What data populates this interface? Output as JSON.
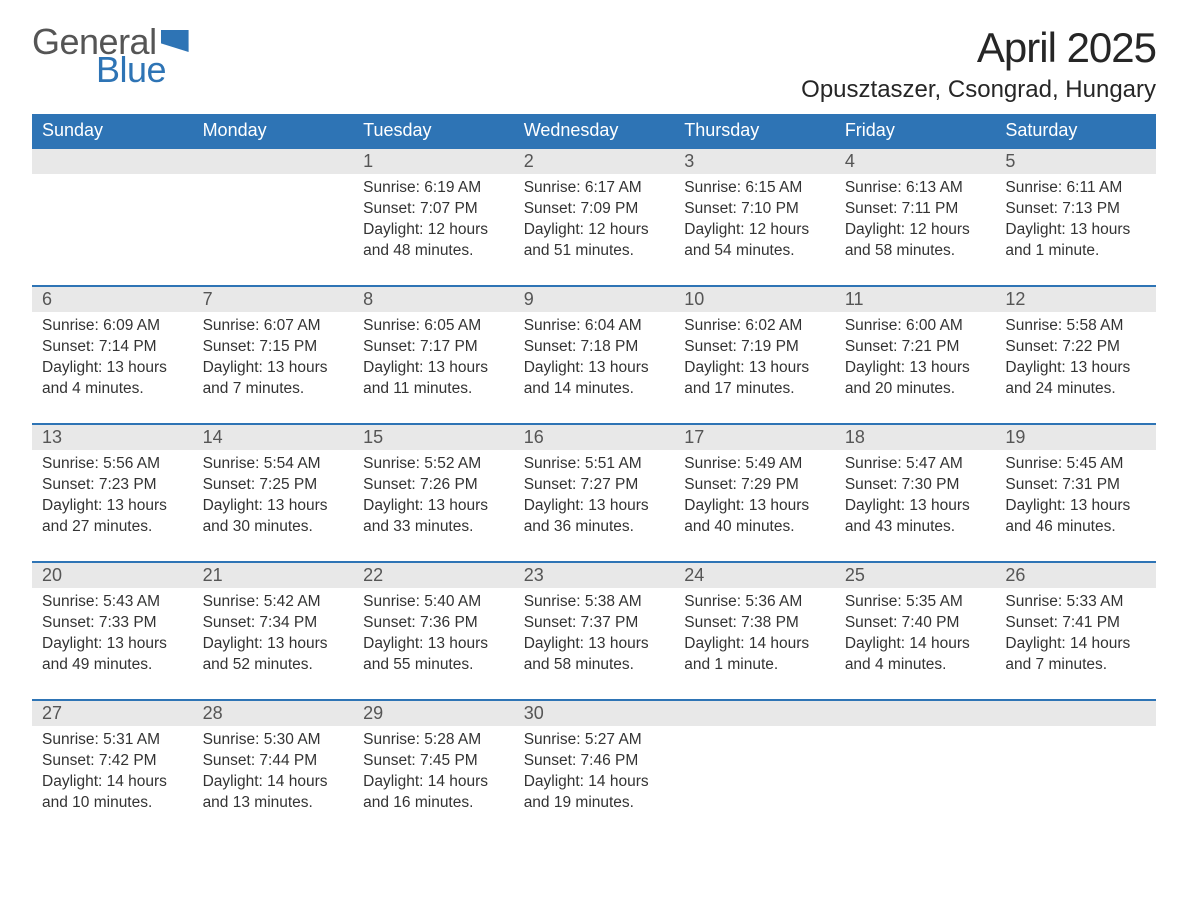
{
  "logo": {
    "word1": "General",
    "word2": "Blue"
  },
  "title": "April 2025",
  "location": "Opusztaszer, Csongrad, Hungary",
  "colors": {
    "header_bg": "#2e74b5",
    "header_text": "#ffffff",
    "daynum_bg": "#e8e8e8",
    "row_border": "#2e74b5",
    "body_text": "#333333",
    "page_bg": "#ffffff"
  },
  "day_headers": [
    "Sunday",
    "Monday",
    "Tuesday",
    "Wednesday",
    "Thursday",
    "Friday",
    "Saturday"
  ],
  "weeks": [
    [
      {
        "n": "",
        "empty": true
      },
      {
        "n": "",
        "empty": true
      },
      {
        "n": "1",
        "sr": "Sunrise: 6:19 AM",
        "ss": "Sunset: 7:07 PM",
        "d1": "Daylight: 12 hours",
        "d2": "and 48 minutes."
      },
      {
        "n": "2",
        "sr": "Sunrise: 6:17 AM",
        "ss": "Sunset: 7:09 PM",
        "d1": "Daylight: 12 hours",
        "d2": "and 51 minutes."
      },
      {
        "n": "3",
        "sr": "Sunrise: 6:15 AM",
        "ss": "Sunset: 7:10 PM",
        "d1": "Daylight: 12 hours",
        "d2": "and 54 minutes."
      },
      {
        "n": "4",
        "sr": "Sunrise: 6:13 AM",
        "ss": "Sunset: 7:11 PM",
        "d1": "Daylight: 12 hours",
        "d2": "and 58 minutes."
      },
      {
        "n": "5",
        "sr": "Sunrise: 6:11 AM",
        "ss": "Sunset: 7:13 PM",
        "d1": "Daylight: 13 hours",
        "d2": "and 1 minute."
      }
    ],
    [
      {
        "n": "6",
        "sr": "Sunrise: 6:09 AM",
        "ss": "Sunset: 7:14 PM",
        "d1": "Daylight: 13 hours",
        "d2": "and 4 minutes."
      },
      {
        "n": "7",
        "sr": "Sunrise: 6:07 AM",
        "ss": "Sunset: 7:15 PM",
        "d1": "Daylight: 13 hours",
        "d2": "and 7 minutes."
      },
      {
        "n": "8",
        "sr": "Sunrise: 6:05 AM",
        "ss": "Sunset: 7:17 PM",
        "d1": "Daylight: 13 hours",
        "d2": "and 11 minutes."
      },
      {
        "n": "9",
        "sr": "Sunrise: 6:04 AM",
        "ss": "Sunset: 7:18 PM",
        "d1": "Daylight: 13 hours",
        "d2": "and 14 minutes."
      },
      {
        "n": "10",
        "sr": "Sunrise: 6:02 AM",
        "ss": "Sunset: 7:19 PM",
        "d1": "Daylight: 13 hours",
        "d2": "and 17 minutes."
      },
      {
        "n": "11",
        "sr": "Sunrise: 6:00 AM",
        "ss": "Sunset: 7:21 PM",
        "d1": "Daylight: 13 hours",
        "d2": "and 20 minutes."
      },
      {
        "n": "12",
        "sr": "Sunrise: 5:58 AM",
        "ss": "Sunset: 7:22 PM",
        "d1": "Daylight: 13 hours",
        "d2": "and 24 minutes."
      }
    ],
    [
      {
        "n": "13",
        "sr": "Sunrise: 5:56 AM",
        "ss": "Sunset: 7:23 PM",
        "d1": "Daylight: 13 hours",
        "d2": "and 27 minutes."
      },
      {
        "n": "14",
        "sr": "Sunrise: 5:54 AM",
        "ss": "Sunset: 7:25 PM",
        "d1": "Daylight: 13 hours",
        "d2": "and 30 minutes."
      },
      {
        "n": "15",
        "sr": "Sunrise: 5:52 AM",
        "ss": "Sunset: 7:26 PM",
        "d1": "Daylight: 13 hours",
        "d2": "and 33 minutes."
      },
      {
        "n": "16",
        "sr": "Sunrise: 5:51 AM",
        "ss": "Sunset: 7:27 PM",
        "d1": "Daylight: 13 hours",
        "d2": "and 36 minutes."
      },
      {
        "n": "17",
        "sr": "Sunrise: 5:49 AM",
        "ss": "Sunset: 7:29 PM",
        "d1": "Daylight: 13 hours",
        "d2": "and 40 minutes."
      },
      {
        "n": "18",
        "sr": "Sunrise: 5:47 AM",
        "ss": "Sunset: 7:30 PM",
        "d1": "Daylight: 13 hours",
        "d2": "and 43 minutes."
      },
      {
        "n": "19",
        "sr": "Sunrise: 5:45 AM",
        "ss": "Sunset: 7:31 PM",
        "d1": "Daylight: 13 hours",
        "d2": "and 46 minutes."
      }
    ],
    [
      {
        "n": "20",
        "sr": "Sunrise: 5:43 AM",
        "ss": "Sunset: 7:33 PM",
        "d1": "Daylight: 13 hours",
        "d2": "and 49 minutes."
      },
      {
        "n": "21",
        "sr": "Sunrise: 5:42 AM",
        "ss": "Sunset: 7:34 PM",
        "d1": "Daylight: 13 hours",
        "d2": "and 52 minutes."
      },
      {
        "n": "22",
        "sr": "Sunrise: 5:40 AM",
        "ss": "Sunset: 7:36 PM",
        "d1": "Daylight: 13 hours",
        "d2": "and 55 minutes."
      },
      {
        "n": "23",
        "sr": "Sunrise: 5:38 AM",
        "ss": "Sunset: 7:37 PM",
        "d1": "Daylight: 13 hours",
        "d2": "and 58 minutes."
      },
      {
        "n": "24",
        "sr": "Sunrise: 5:36 AM",
        "ss": "Sunset: 7:38 PM",
        "d1": "Daylight: 14 hours",
        "d2": "and 1 minute."
      },
      {
        "n": "25",
        "sr": "Sunrise: 5:35 AM",
        "ss": "Sunset: 7:40 PM",
        "d1": "Daylight: 14 hours",
        "d2": "and 4 minutes."
      },
      {
        "n": "26",
        "sr": "Sunrise: 5:33 AM",
        "ss": "Sunset: 7:41 PM",
        "d1": "Daylight: 14 hours",
        "d2": "and 7 minutes."
      }
    ],
    [
      {
        "n": "27",
        "sr": "Sunrise: 5:31 AM",
        "ss": "Sunset: 7:42 PM",
        "d1": "Daylight: 14 hours",
        "d2": "and 10 minutes."
      },
      {
        "n": "28",
        "sr": "Sunrise: 5:30 AM",
        "ss": "Sunset: 7:44 PM",
        "d1": "Daylight: 14 hours",
        "d2": "and 13 minutes."
      },
      {
        "n": "29",
        "sr": "Sunrise: 5:28 AM",
        "ss": "Sunset: 7:45 PM",
        "d1": "Daylight: 14 hours",
        "d2": "and 16 minutes."
      },
      {
        "n": "30",
        "sr": "Sunrise: 5:27 AM",
        "ss": "Sunset: 7:46 PM",
        "d1": "Daylight: 14 hours",
        "d2": "and 19 minutes."
      },
      {
        "n": "",
        "empty": true
      },
      {
        "n": "",
        "empty": true
      },
      {
        "n": "",
        "empty": true
      }
    ]
  ]
}
